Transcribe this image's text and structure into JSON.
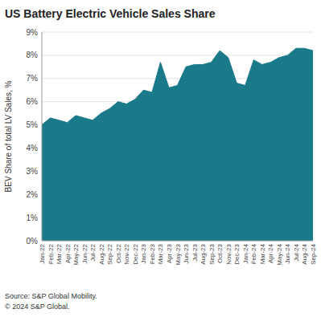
{
  "chart_data": {
    "type": "area",
    "title": "US Battery Electric Vehicle Sales Share",
    "y_label": "BEV Share of total LV Sales, %",
    "annotations": [
      "Source: S&P Global Mobility.",
      "© 2024 S&P Global."
    ],
    "color": "#1a7a8a",
    "grid": true,
    "categories": [
      "Jan-22",
      "Feb-22",
      "Mar-22",
      "Apr-22",
      "May-22",
      "Jun-22",
      "Jul-22",
      "Aug-22",
      "Sep-22",
      "Oct-22",
      "Nov-22",
      "Dec-22",
      "Jan-23",
      "Feb-23",
      "Mar-23",
      "Apr-23",
      "May-23",
      "Jun-23",
      "Jul-23",
      "Aug-23",
      "Sep-23",
      "Oct-23",
      "Nov-23",
      "Dec-23",
      "Jan-24",
      "Feb-24",
      "Mar-24",
      "Apr-24",
      "May-24",
      "Jun-24",
      "Jul-24",
      "Aug-24",
      "Sep-24"
    ],
    "values": [
      5.0,
      5.3,
      5.2,
      5.1,
      5.4,
      5.3,
      5.2,
      5.5,
      5.7,
      6.0,
      5.9,
      6.1,
      6.5,
      6.4,
      7.7,
      6.6,
      6.7,
      7.5,
      7.6,
      7.6,
      7.7,
      8.2,
      7.9,
      6.8,
      6.7,
      7.8,
      7.6,
      7.7,
      7.9,
      8.0,
      8.3,
      8.3,
      8.2
    ],
    "ylim": [
      0,
      9
    ],
    "yticks": [
      {
        "value": 0,
        "label": "0%"
      },
      {
        "value": 1,
        "label": "1%"
      },
      {
        "value": 2,
        "label": "2%"
      },
      {
        "value": 3,
        "label": "3%"
      },
      {
        "value": 4,
        "label": "4%"
      },
      {
        "value": 5,
        "label": "5%"
      },
      {
        "value": 6,
        "label": "6%"
      },
      {
        "value": 7,
        "label": "7%"
      },
      {
        "value": 8,
        "label": "8%"
      },
      {
        "value": 9,
        "label": "9%"
      }
    ]
  }
}
